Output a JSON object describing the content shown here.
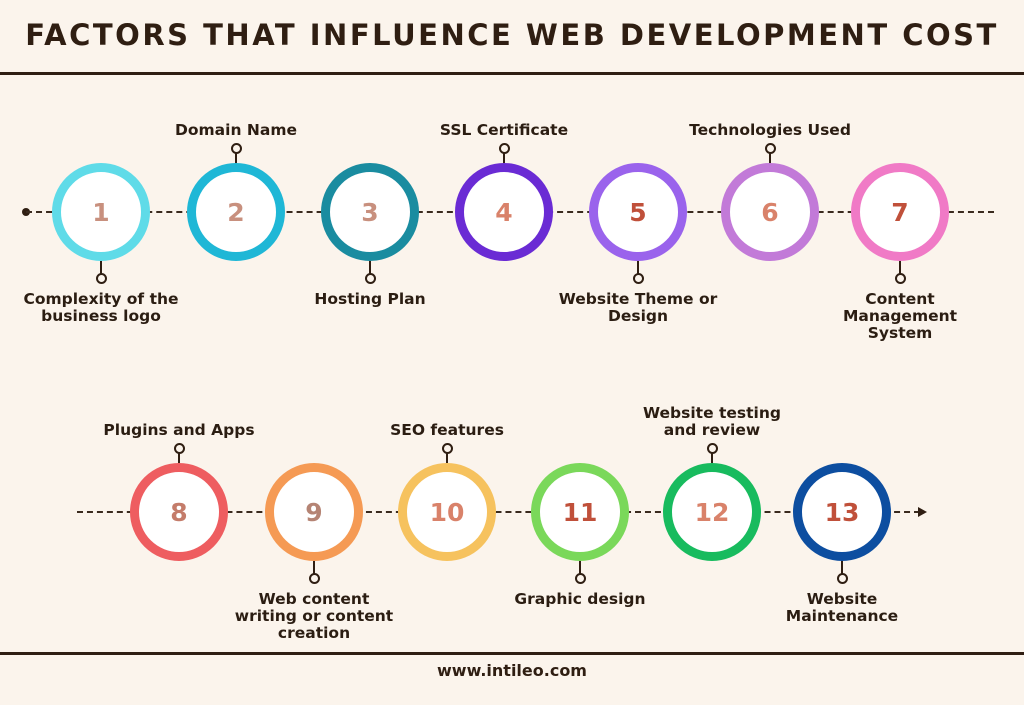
{
  "title": "FACTORS THAT INFLUENCE WEB DEVELOPMENT COST",
  "footer": "www.intileo.com",
  "steps": [
    {
      "number": "1",
      "label": "Complexity of the business logo",
      "color": "#5fdbe8",
      "text_color": "#c8907e"
    },
    {
      "number": "2",
      "label": "Domain Name",
      "color": "#1fb7d6",
      "text_color": "#c8907e"
    },
    {
      "number": "3",
      "label": "Hosting Plan",
      "color": "#1a8ca0",
      "text_color": "#c8907e"
    },
    {
      "number": "4",
      "label": "SSL Certificate",
      "color": "#6a2bd4",
      "text_color": "#d9826a"
    },
    {
      "number": "5",
      "label": "Website Theme or Design",
      "color": "#9a63ec",
      "text_color": "#c0503a"
    },
    {
      "number": "6",
      "label": "Technologies Used",
      "color": "#c27ad8",
      "text_color": "#d9826a"
    },
    {
      "number": "7",
      "label": "Content Management System",
      "color": "#f07ac6",
      "text_color": "#c0503a"
    },
    {
      "number": "8",
      "label": "Plugins and Apps",
      "color": "#ee5d60",
      "text_color": "#c47c6a"
    },
    {
      "number": "9",
      "label": "Web content writing or content creation",
      "color": "#f59a54",
      "text_color": "#b58474"
    },
    {
      "number": "10",
      "label": "SEO features",
      "color": "#f6c25e",
      "text_color": "#d9826a"
    },
    {
      "number": "11",
      "label": "Graphic design",
      "color": "#7ad85a",
      "text_color": "#c0503a"
    },
    {
      "number": "12",
      "label": "Website testing and review",
      "color": "#18bb5e",
      "text_color": "#d9826a"
    },
    {
      "number": "13",
      "label": "Website Maintenance",
      "color": "#0d4ea0",
      "text_color": "#c0503a"
    }
  ]
}
